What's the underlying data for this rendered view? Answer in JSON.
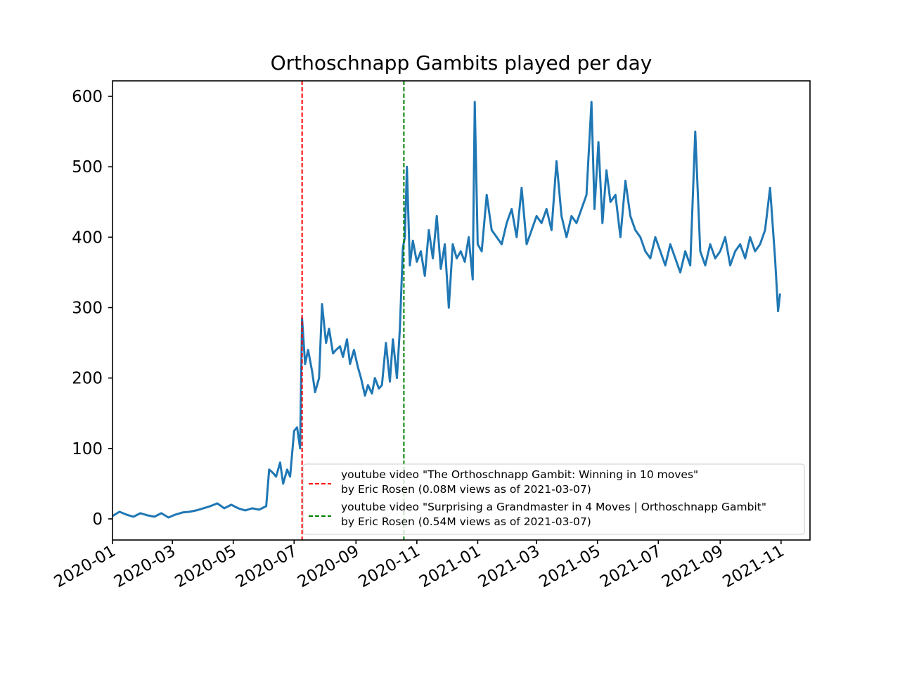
{
  "chart_data": {
    "type": "line",
    "title": "Orthoschnapp Gambits played per day",
    "xlabel": "",
    "ylabel": "",
    "x_start": "2020-01-01",
    "x_end": "2021-10-31",
    "xlim": [
      "2020-01-01",
      "2021-11-30"
    ],
    "ylim": [
      -30,
      622
    ],
    "x_ticks": [
      "2020-01",
      "2020-03",
      "2020-05",
      "2020-07",
      "2020-09",
      "2020-11",
      "2021-01",
      "2021-03",
      "2021-05",
      "2021-07",
      "2021-09",
      "2021-11"
    ],
    "y_ticks": [
      0,
      100,
      200,
      300,
      400,
      500,
      600
    ],
    "grid": false,
    "legend_position": "lower right",
    "series": [
      {
        "color": "#1f77b4",
        "points": [
          [
            "2020-01-01",
            4
          ],
          [
            "2020-01-08",
            10
          ],
          [
            "2020-01-15",
            6
          ],
          [
            "2020-01-22",
            3
          ],
          [
            "2020-01-29",
            8
          ],
          [
            "2020-02-05",
            5
          ],
          [
            "2020-02-12",
            3
          ],
          [
            "2020-02-19",
            8
          ],
          [
            "2020-02-26",
            2
          ],
          [
            "2020-03-04",
            6
          ],
          [
            "2020-03-11",
            9
          ],
          [
            "2020-03-18",
            10
          ],
          [
            "2020-03-25",
            12
          ],
          [
            "2020-04-01",
            15
          ],
          [
            "2020-04-08",
            18
          ],
          [
            "2020-04-15",
            22
          ],
          [
            "2020-04-22",
            15
          ],
          [
            "2020-04-29",
            20
          ],
          [
            "2020-05-06",
            15
          ],
          [
            "2020-05-13",
            12
          ],
          [
            "2020-05-20",
            15
          ],
          [
            "2020-05-27",
            13
          ],
          [
            "2020-06-03",
            18
          ],
          [
            "2020-06-06",
            70
          ],
          [
            "2020-06-10",
            65
          ],
          [
            "2020-06-13",
            60
          ],
          [
            "2020-06-17",
            80
          ],
          [
            "2020-06-20",
            50
          ],
          [
            "2020-06-24",
            70
          ],
          [
            "2020-06-27",
            60
          ],
          [
            "2020-07-01",
            125
          ],
          [
            "2020-07-04",
            130
          ],
          [
            "2020-07-07",
            100
          ],
          [
            "2020-07-09",
            285
          ],
          [
            "2020-07-12",
            220
          ],
          [
            "2020-07-15",
            240
          ],
          [
            "2020-07-19",
            210
          ],
          [
            "2020-07-22",
            180
          ],
          [
            "2020-07-26",
            200
          ],
          [
            "2020-07-29",
            305
          ],
          [
            "2020-08-02",
            250
          ],
          [
            "2020-08-05",
            270
          ],
          [
            "2020-08-09",
            235
          ],
          [
            "2020-08-12",
            240
          ],
          [
            "2020-08-16",
            245
          ],
          [
            "2020-08-19",
            230
          ],
          [
            "2020-08-23",
            255
          ],
          [
            "2020-08-26",
            220
          ],
          [
            "2020-08-30",
            240
          ],
          [
            "2020-09-03",
            215
          ],
          [
            "2020-09-06",
            200
          ],
          [
            "2020-09-10",
            175
          ],
          [
            "2020-09-13",
            190
          ],
          [
            "2020-09-17",
            178
          ],
          [
            "2020-09-20",
            200
          ],
          [
            "2020-09-24",
            185
          ],
          [
            "2020-09-27",
            190
          ],
          [
            "2020-10-01",
            250
          ],
          [
            "2020-10-05",
            195
          ],
          [
            "2020-10-08",
            255
          ],
          [
            "2020-10-12",
            200
          ],
          [
            "2020-10-15",
            270
          ],
          [
            "2020-10-18",
            385
          ],
          [
            "2020-10-20",
            400
          ],
          [
            "2020-10-22",
            500
          ],
          [
            "2020-10-25",
            360
          ],
          [
            "2020-10-28",
            395
          ],
          [
            "2020-11-01",
            365
          ],
          [
            "2020-11-05",
            380
          ],
          [
            "2020-11-09",
            345
          ],
          [
            "2020-11-13",
            410
          ],
          [
            "2020-11-17",
            370
          ],
          [
            "2020-11-21",
            430
          ],
          [
            "2020-11-25",
            355
          ],
          [
            "2020-11-29",
            390
          ],
          [
            "2020-12-03",
            300
          ],
          [
            "2020-12-07",
            390
          ],
          [
            "2020-12-11",
            370
          ],
          [
            "2020-12-15",
            380
          ],
          [
            "2020-12-19",
            365
          ],
          [
            "2020-12-23",
            400
          ],
          [
            "2020-12-27",
            340
          ],
          [
            "2020-12-29",
            592
          ],
          [
            "2021-01-01",
            390
          ],
          [
            "2021-01-05",
            380
          ],
          [
            "2021-01-10",
            460
          ],
          [
            "2021-01-15",
            410
          ],
          [
            "2021-01-20",
            400
          ],
          [
            "2021-01-25",
            390
          ],
          [
            "2021-01-30",
            420
          ],
          [
            "2021-02-04",
            440
          ],
          [
            "2021-02-09",
            400
          ],
          [
            "2021-02-14",
            470
          ],
          [
            "2021-02-19",
            390
          ],
          [
            "2021-02-24",
            410
          ],
          [
            "2021-03-01",
            430
          ],
          [
            "2021-03-06",
            420
          ],
          [
            "2021-03-11",
            440
          ],
          [
            "2021-03-16",
            410
          ],
          [
            "2021-03-21",
            508
          ],
          [
            "2021-03-26",
            430
          ],
          [
            "2021-03-31",
            400
          ],
          [
            "2021-04-05",
            430
          ],
          [
            "2021-04-10",
            420
          ],
          [
            "2021-04-15",
            440
          ],
          [
            "2021-04-20",
            460
          ],
          [
            "2021-04-25",
            592
          ],
          [
            "2021-04-28",
            440
          ],
          [
            "2021-05-02",
            535
          ],
          [
            "2021-05-06",
            420
          ],
          [
            "2021-05-10",
            495
          ],
          [
            "2021-05-14",
            450
          ],
          [
            "2021-05-19",
            460
          ],
          [
            "2021-05-24",
            400
          ],
          [
            "2021-05-29",
            480
          ],
          [
            "2021-06-03",
            430
          ],
          [
            "2021-06-08",
            410
          ],
          [
            "2021-06-13",
            400
          ],
          [
            "2021-06-18",
            380
          ],
          [
            "2021-06-23",
            370
          ],
          [
            "2021-06-28",
            400
          ],
          [
            "2021-07-03",
            380
          ],
          [
            "2021-07-08",
            360
          ],
          [
            "2021-07-13",
            390
          ],
          [
            "2021-07-18",
            370
          ],
          [
            "2021-07-23",
            350
          ],
          [
            "2021-07-28",
            380
          ],
          [
            "2021-08-02",
            360
          ],
          [
            "2021-08-07",
            550
          ],
          [
            "2021-08-12",
            380
          ],
          [
            "2021-08-17",
            360
          ],
          [
            "2021-08-22",
            390
          ],
          [
            "2021-08-27",
            370
          ],
          [
            "2021-09-01",
            380
          ],
          [
            "2021-09-06",
            400
          ],
          [
            "2021-09-11",
            360
          ],
          [
            "2021-09-16",
            380
          ],
          [
            "2021-09-21",
            390
          ],
          [
            "2021-09-26",
            370
          ],
          [
            "2021-10-01",
            400
          ],
          [
            "2021-10-06",
            380
          ],
          [
            "2021-10-11",
            390
          ],
          [
            "2021-10-16",
            410
          ],
          [
            "2021-10-21",
            470
          ],
          [
            "2021-10-26",
            370
          ],
          [
            "2021-10-29",
            295
          ],
          [
            "2021-10-31",
            320
          ]
        ]
      }
    ],
    "vlines": [
      {
        "date": "2020-07-09",
        "color": "#ff0000",
        "style": "dashed",
        "label": "youtube video \"The Orthoschnapp Gambit: Winning in 10 moves\"\nby Eric Rosen (0.08M views as of 2021-03-07)"
      },
      {
        "date": "2020-10-19",
        "color": "#008000",
        "style": "dashed",
        "label": "youtube video \"Surprising a Grandmaster in 4 Moves | Orthoschnapp Gambit\"\nby Eric Rosen (0.54M views as of 2021-03-07)"
      }
    ]
  }
}
